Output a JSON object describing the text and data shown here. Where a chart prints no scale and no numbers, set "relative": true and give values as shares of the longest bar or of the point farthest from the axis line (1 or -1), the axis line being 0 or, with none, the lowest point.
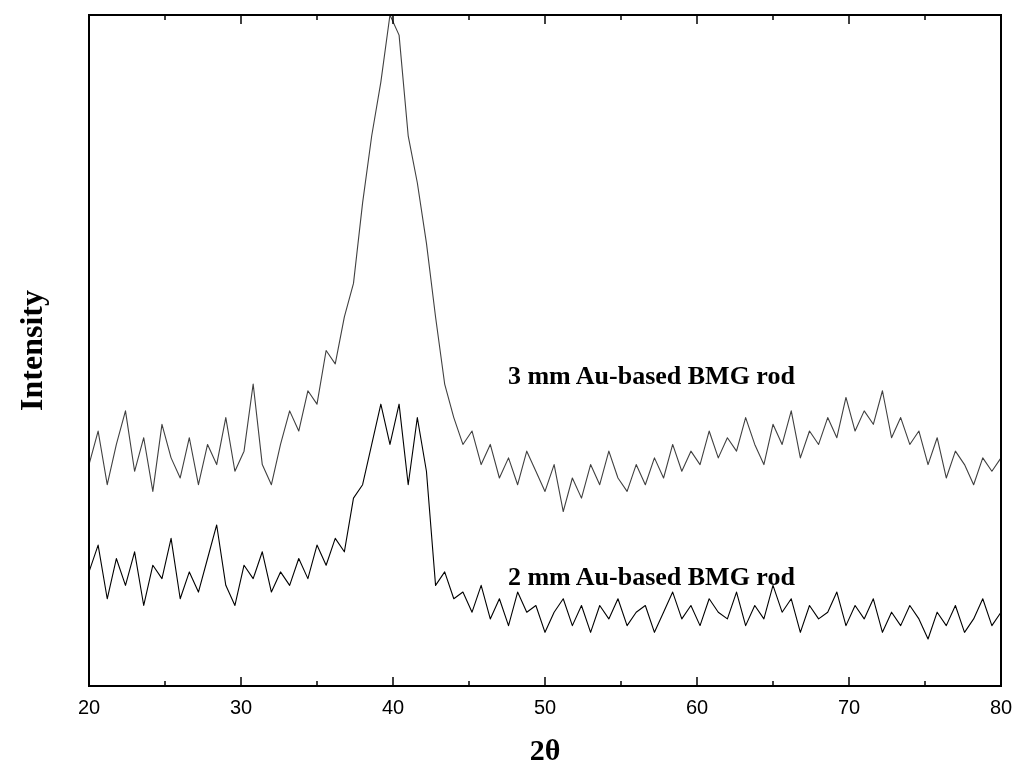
{
  "chart_data": {
    "type": "line",
    "xlabel": "2θ",
    "ylabel": "Intensity",
    "relative": true,
    "tick_labels": "x",
    "xlim": [
      20,
      80
    ],
    "xticks": [
      20,
      {
        "value": 25,
        "label": null
      },
      30,
      {
        "value": 35,
        "label": null
      },
      40,
      {
        "value": 45,
        "label": null
      },
      50,
      {
        "value": 55,
        "label": null
      },
      60,
      {
        "value": 65,
        "label": null
      },
      70,
      {
        "value": 75,
        "label": null
      },
      80
    ],
    "x": [
      20,
      20.6,
      21.2,
      21.8,
      22.4,
      23,
      23.6,
      24.2,
      24.8,
      25.4,
      26,
      26.6,
      27.2,
      27.8,
      28.4,
      29,
      29.6,
      30.2,
      30.8,
      31.4,
      32,
      32.6,
      33.2,
      33.8,
      34.4,
      35,
      35.6,
      36.2,
      36.8,
      37.4,
      38,
      38.6,
      39.2,
      39.8,
      40.4,
      41,
      41.6,
      42.2,
      42.8,
      43.4,
      44,
      44.6,
      45.2,
      45.8,
      46.4,
      47,
      47.6,
      48.2,
      48.8,
      49.4,
      50,
      50.6,
      51.2,
      51.8,
      52.4,
      53,
      53.6,
      54.2,
      54.8,
      55.4,
      56,
      56.6,
      57.2,
      57.8,
      58.4,
      59,
      59.6,
      60.2,
      60.8,
      61.4,
      62,
      62.6,
      63.2,
      63.8,
      64.4,
      65,
      65.6,
      66.2,
      66.8,
      67.4,
      68,
      68.6,
      69.2,
      69.8,
      70.4,
      71,
      71.6,
      72.2,
      72.8,
      73.4,
      74,
      74.6,
      75.2,
      75.8,
      76.4,
      77,
      77.6,
      78.2,
      78.8,
      79.4,
      80
    ],
    "series": [
      {
        "name": "3 mm Au-based BMG rod",
        "color": "#404040",
        "values": [
          0.33,
          0.38,
          0.3,
          0.36,
          0.41,
          0.32,
          0.37,
          0.29,
          0.39,
          0.34,
          0.31,
          0.37,
          0.3,
          0.36,
          0.33,
          0.4,
          0.32,
          0.35,
          0.45,
          0.33,
          0.3,
          0.36,
          0.41,
          0.38,
          0.44,
          0.42,
          0.5,
          0.48,
          0.55,
          0.6,
          0.72,
          0.82,
          0.9,
          1.0,
          0.97,
          0.82,
          0.75,
          0.66,
          0.55,
          0.45,
          0.4,
          0.36,
          0.38,
          0.33,
          0.36,
          0.31,
          0.34,
          0.3,
          0.35,
          0.32,
          0.29,
          0.33,
          0.26,
          0.31,
          0.28,
          0.33,
          0.3,
          0.35,
          0.31,
          0.29,
          0.33,
          0.3,
          0.34,
          0.31,
          0.36,
          0.32,
          0.35,
          0.33,
          0.38,
          0.34,
          0.37,
          0.35,
          0.4,
          0.36,
          0.33,
          0.39,
          0.36,
          0.41,
          0.34,
          0.38,
          0.36,
          0.4,
          0.37,
          0.43,
          0.38,
          0.41,
          0.39,
          0.44,
          0.37,
          0.4,
          0.36,
          0.38,
          0.33,
          0.37,
          0.31,
          0.35,
          0.33,
          0.3,
          0.34,
          0.32,
          0.34
        ]
      },
      {
        "name": "2 mm Au-based BMG rod",
        "color": "#000000",
        "values": [
          0.17,
          0.21,
          0.13,
          0.19,
          0.15,
          0.2,
          0.12,
          0.18,
          0.16,
          0.22,
          0.13,
          0.17,
          0.14,
          0.19,
          0.24,
          0.15,
          0.12,
          0.18,
          0.16,
          0.2,
          0.14,
          0.17,
          0.15,
          0.19,
          0.16,
          0.21,
          0.18,
          0.22,
          0.2,
          0.28,
          0.3,
          0.36,
          0.42,
          0.36,
          0.42,
          0.3,
          0.4,
          0.32,
          0.15,
          0.17,
          0.13,
          0.14,
          0.11,
          0.15,
          0.1,
          0.13,
          0.09,
          0.14,
          0.11,
          0.12,
          0.08,
          0.11,
          0.13,
          0.09,
          0.12,
          0.08,
          0.12,
          0.1,
          0.13,
          0.09,
          0.11,
          0.12,
          0.08,
          0.11,
          0.14,
          0.1,
          0.12,
          0.09,
          0.13,
          0.11,
          0.1,
          0.14,
          0.09,
          0.12,
          0.1,
          0.15,
          0.11,
          0.13,
          0.08,
          0.12,
          0.1,
          0.11,
          0.14,
          0.09,
          0.12,
          0.1,
          0.13,
          0.08,
          0.11,
          0.09,
          0.12,
          0.1,
          0.07,
          0.11,
          0.09,
          0.12,
          0.08,
          0.1,
          0.13,
          0.09,
          0.11
        ]
      }
    ]
  }
}
